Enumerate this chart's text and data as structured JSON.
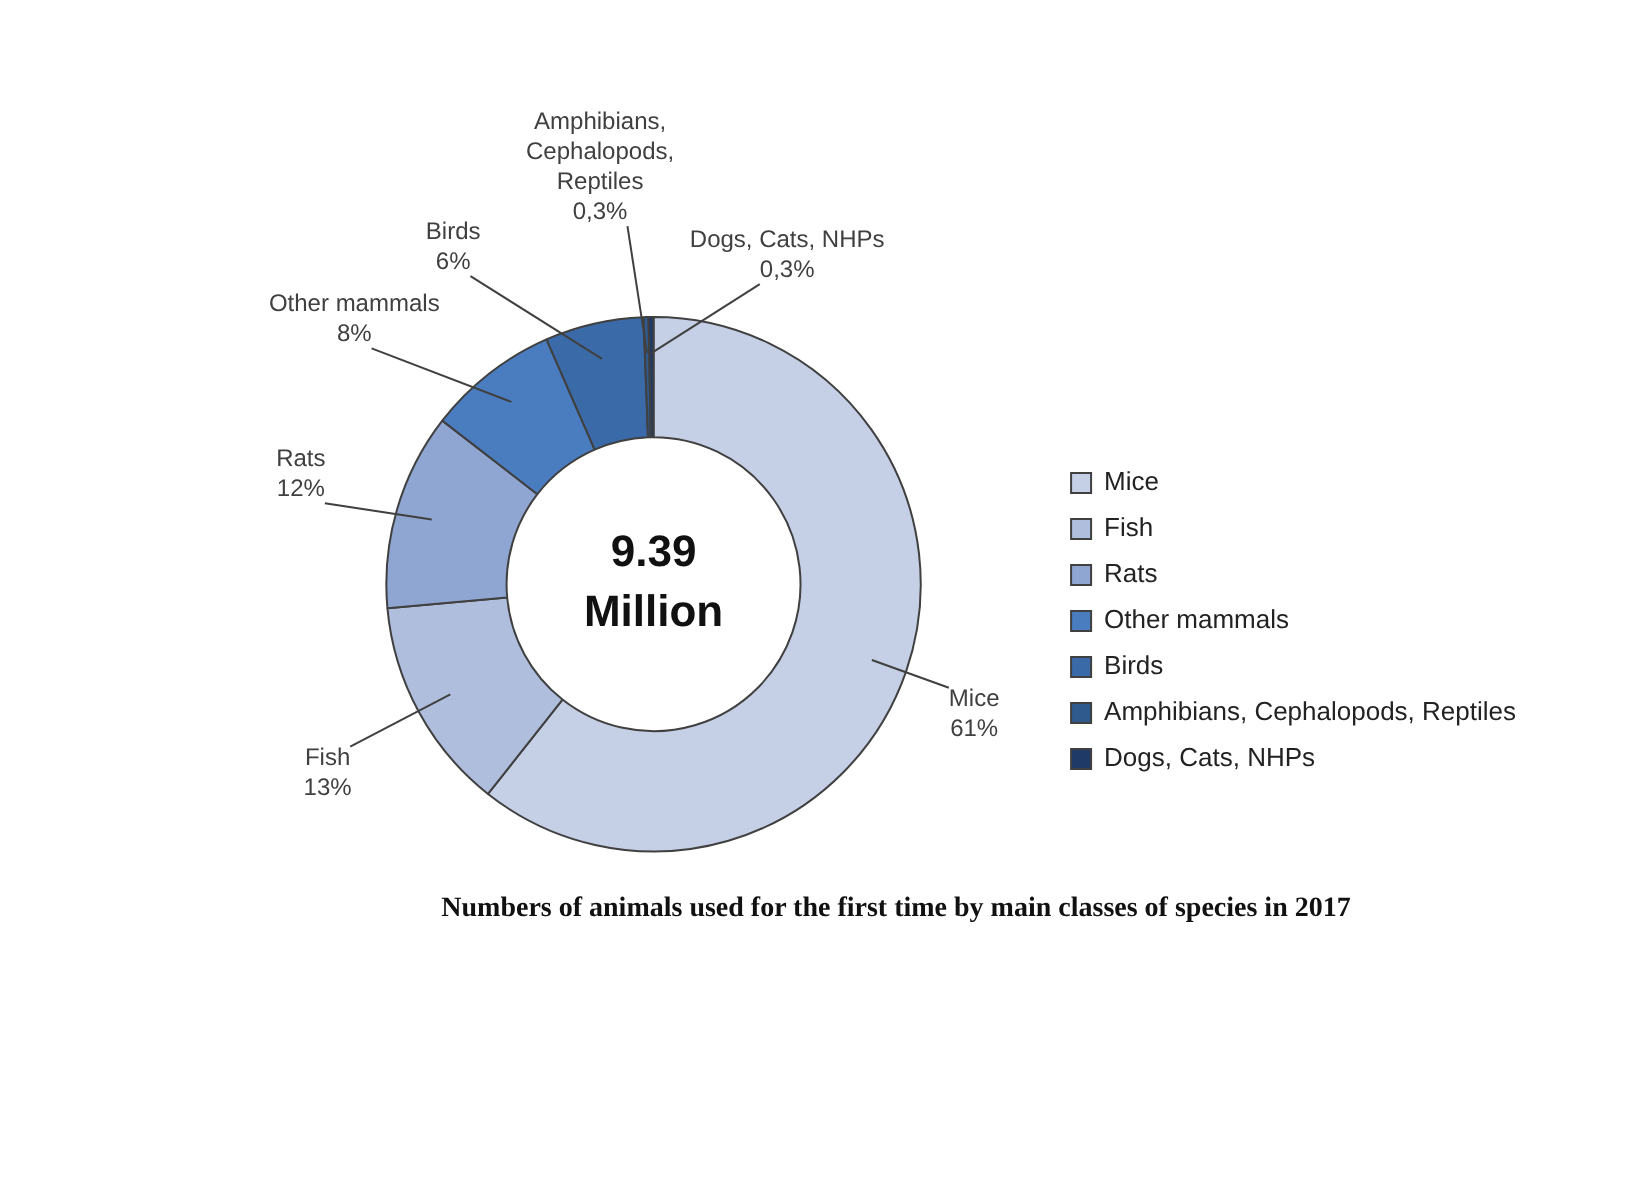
{
  "chart_data": {
    "type": "donut",
    "title": "Numbers of animals used for the first time by main classes of species in 2017",
    "categories": [
      "Mice",
      "Fish",
      "Rats",
      "Other mammals",
      "Birds",
      "Amphibians, Cephalopods, Reptiles",
      "Dogs, Cats, NHPs"
    ],
    "values": [
      61,
      13,
      12,
      8,
      6,
      0.3,
      0.3
    ],
    "value_labels": [
      "61%",
      "13%",
      "12%",
      "8%",
      "6%",
      "0,3%",
      "0,3%"
    ],
    "colors": [
      "#c5cfe6",
      "#b0bede",
      "#8fa6d2",
      "#4a7cc0",
      "#3b6aa8",
      "#2e5a8e",
      "#1f3a66"
    ],
    "annotations": [
      "9.39 Million"
    ],
    "legend": "right"
  }
}
